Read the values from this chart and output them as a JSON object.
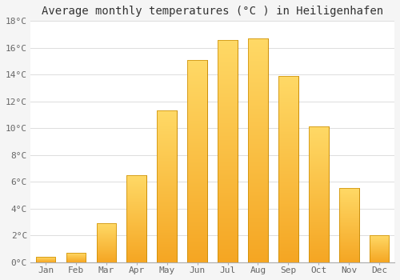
{
  "title": "Average monthly temperatures (°C ) in Heiligenhafen",
  "months": [
    "Jan",
    "Feb",
    "Mar",
    "Apr",
    "May",
    "Jun",
    "Jul",
    "Aug",
    "Sep",
    "Oct",
    "Nov",
    "Dec"
  ],
  "values": [
    0.4,
    0.7,
    2.9,
    6.5,
    11.3,
    15.1,
    16.6,
    16.7,
    13.9,
    10.1,
    5.5,
    2.0
  ],
  "bar_color_bottom": "#F5A623",
  "bar_color_top": "#FFD966",
  "bar_edge_color": "#C88A00",
  "ylim": [
    0,
    18
  ],
  "yticks": [
    0,
    2,
    4,
    6,
    8,
    10,
    12,
    14,
    16,
    18
  ],
  "ytick_labels": [
    "0°C",
    "2°C",
    "4°C",
    "6°C",
    "8°C",
    "10°C",
    "12°C",
    "14°C",
    "16°C",
    "18°C"
  ],
  "background_color": "#f5f5f5",
  "plot_bg_color": "#ffffff",
  "grid_color": "#dddddd",
  "title_fontsize": 10,
  "tick_fontsize": 8,
  "bar_width": 0.65
}
